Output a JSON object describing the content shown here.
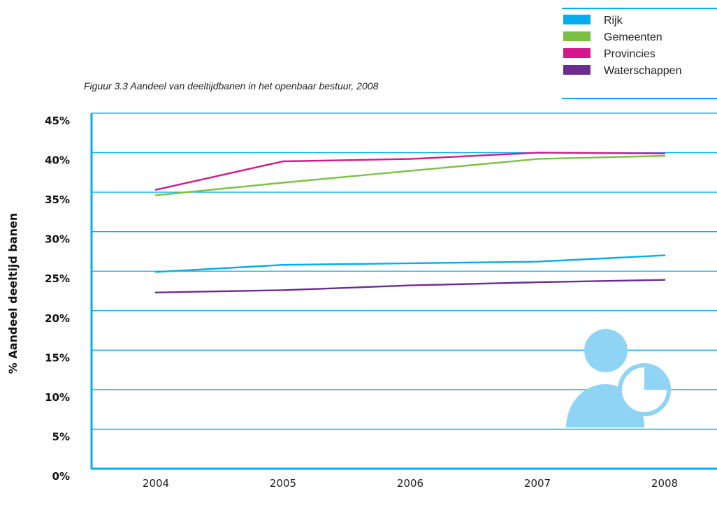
{
  "chart_data": {
    "type": "line",
    "title": "Figuur 3.3 Aandeel van deeltijdbanen in het openbaar bestuur, 2008",
    "ylabel": "% Aandeel deeltijd banen",
    "xlabel": "",
    "x": [
      "2004",
      "2005",
      "2006",
      "2007",
      "2008"
    ],
    "ylim": [
      0,
      45
    ],
    "yticks": [
      0,
      5,
      10,
      15,
      20,
      25,
      30,
      35,
      40,
      45
    ],
    "ytick_labels": [
      "0%",
      "5%",
      "10%",
      "15%",
      "20%",
      "25%",
      "30%",
      "35%",
      "40%",
      "45%"
    ],
    "grid": "horizontal",
    "legend_position": "top-right",
    "series": [
      {
        "name": "Rijk",
        "color": "#00adef",
        "values": [
          24.9,
          25.8,
          26.0,
          26.2,
          27.0
        ]
      },
      {
        "name": "Gemeenten",
        "color": "#7ac143",
        "values": [
          34.6,
          36.2,
          37.7,
          39.2,
          39.6
        ]
      },
      {
        "name": "Provincies",
        "color": "#d4178a",
        "values": [
          35.3,
          38.9,
          39.2,
          40.0,
          39.9
        ]
      },
      {
        "name": "Waterschappen",
        "color": "#6b2c91",
        "values": [
          22.3,
          22.6,
          23.2,
          23.6,
          23.9
        ]
      }
    ],
    "colors": {
      "axis": "#00adef",
      "grid": "#00adef",
      "icon": "#8fd3f5"
    },
    "decoration": "person-icon"
  }
}
